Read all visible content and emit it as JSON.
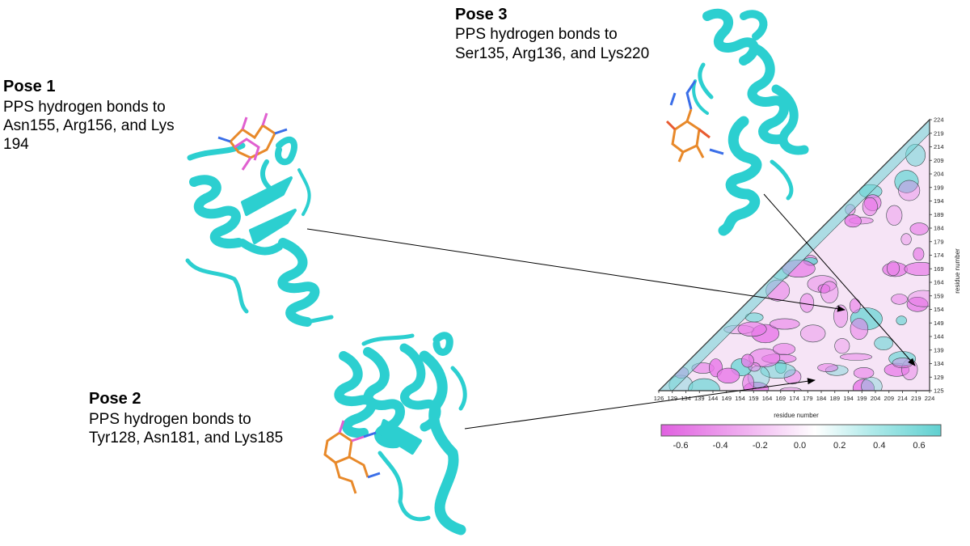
{
  "poses": [
    {
      "id": "pose1",
      "title": "Pose 1",
      "lines": [
        "PPS hydrogen bonds to",
        "Asn155, Arg156, and Lys",
        "194"
      ]
    },
    {
      "id": "pose2",
      "title": "Pose 2",
      "lines": [
        "PPS hydrogen bonds to",
        "Tyr128, Asn181, and Lys185"
      ]
    },
    {
      "id": "pose3",
      "title": "Pose 3",
      "lines": [
        "PPS hydrogen bonds to",
        "Ser135, Arg136, and Lys220"
      ]
    }
  ],
  "map": {
    "x_axis_label": "residue number",
    "y_axis_label": "residue number",
    "x_ticks": [
      "126",
      "129",
      "134",
      "139",
      "144",
      "149",
      "154",
      "159",
      "164",
      "169",
      "174",
      "179",
      "184",
      "189",
      "194",
      "199",
      "204",
      "209",
      "214",
      "219",
      "224"
    ],
    "y_ticks": [
      "125",
      "129",
      "134",
      "139",
      "144",
      "149",
      "154",
      "159",
      "164",
      "169",
      "174",
      "179",
      "184",
      "189",
      "194",
      "199",
      "204",
      "209",
      "214",
      "219",
      "224"
    ],
    "colorbar_labels": [
      "-0.6",
      "-0.4",
      "-0.2",
      "0.0",
      "0.2",
      "0.4",
      "0.6"
    ],
    "colors": {
      "negative": "#e87ae8",
      "neutral": "#ffffff",
      "positive": "#6fd6d6",
      "protein": "#2ccfd0",
      "ligand": "#e8892a",
      "ligand_pink": "#e060d0"
    }
  }
}
